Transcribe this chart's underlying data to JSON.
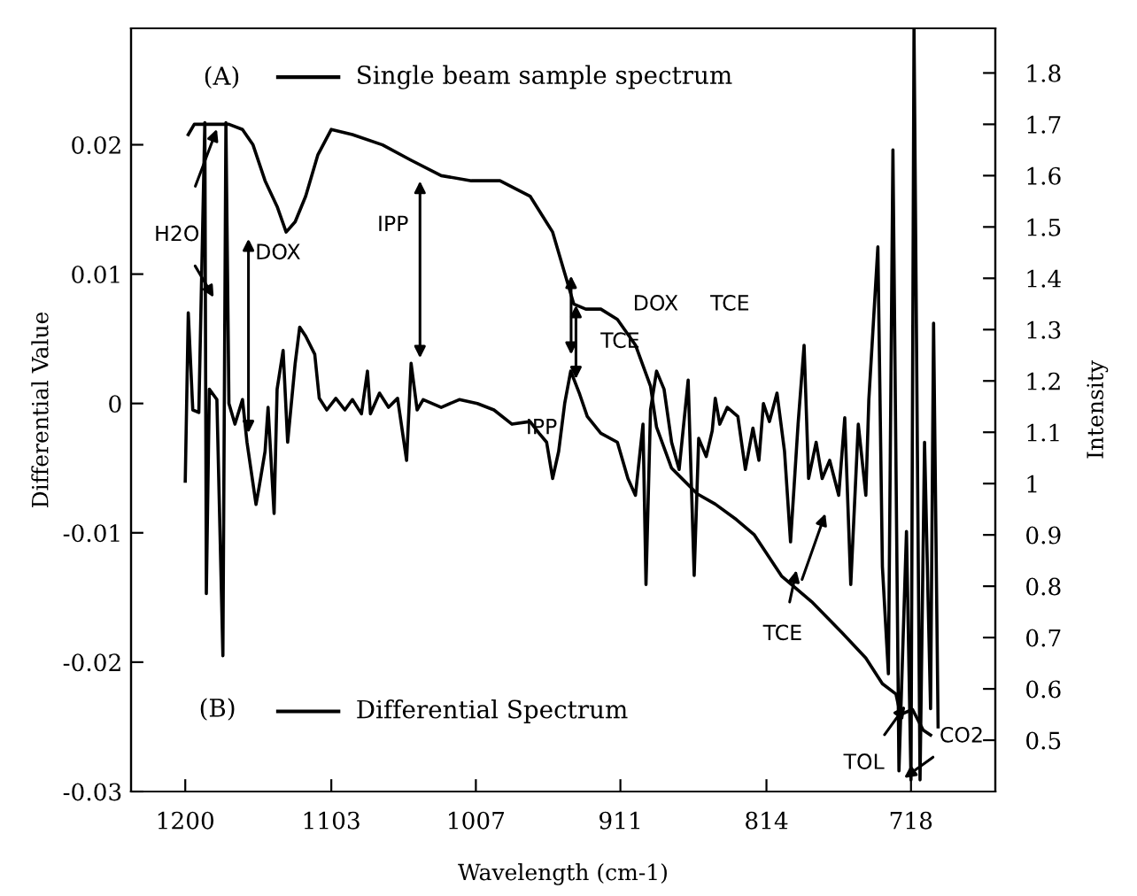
{
  "chart_data": {
    "type": "line",
    "xlabel": "Wavelength (cm-1)",
    "ylabel": "Differential Value",
    "y2label": "Intensity",
    "xlim": [
      1236,
      662
    ],
    "xticks": [
      1200,
      1103,
      1007,
      911,
      814,
      718
    ],
    "ylim": [
      -0.03,
      0.029
    ],
    "yticks": [
      -0.03,
      -0.02,
      -0.01,
      0,
      0.01,
      0.02
    ],
    "y2lim": [
      0.4,
      1.887
    ],
    "y2ticks": [
      0.5,
      0.6,
      0.7,
      0.8,
      0.9,
      1,
      1.1,
      1.2,
      1.3,
      1.4,
      1.5,
      1.6,
      1.7,
      1.8
    ],
    "grid": false,
    "series": [
      {
        "name": "Single beam sample spectrum",
        "color": "#000000",
        "axis": "y2",
        "x": [
          1198,
          1194,
          1186,
          1182,
          1171,
          1162,
          1155,
          1147,
          1139,
          1133,
          1127,
          1120,
          1112,
          1103,
          1089,
          1069,
          1050,
          1030,
          1010,
          991,
          971,
          956,
          948,
          942,
          934,
          924,
          913,
          901,
          891,
          887,
          877,
          860,
          848,
          834,
          822,
          804,
          784,
          764,
          748,
          737,
          728,
          725,
          717,
          710,
          705
        ],
        "values": [
          1.68,
          1.7,
          1.7,
          1.7,
          1.7,
          1.69,
          1.66,
          1.59,
          1.54,
          1.49,
          1.51,
          1.56,
          1.64,
          1.69,
          1.68,
          1.66,
          1.63,
          1.6,
          1.59,
          1.59,
          1.56,
          1.49,
          1.41,
          1.35,
          1.34,
          1.34,
          1.32,
          1.27,
          1.19,
          1.11,
          1.03,
          0.98,
          0.96,
          0.93,
          0.9,
          0.82,
          0.77,
          0.71,
          0.66,
          0.61,
          0.59,
          0.55,
          0.56,
          0.52,
          0.51
        ]
      },
      {
        "name": "Differential Spectrum",
        "color": "#000000",
        "x": [
          1200,
          1198,
          1195,
          1191,
          1187,
          1186,
          1184,
          1179,
          1175,
          1173,
          1171,
          1167,
          1162,
          1159,
          1153,
          1151,
          1147,
          1145,
          1141,
          1139,
          1135,
          1132,
          1127,
          1124,
          1120,
          1114,
          1111,
          1106,
          1100,
          1094,
          1089,
          1083,
          1079,
          1077,
          1071,
          1065,
          1059,
          1053,
          1050,
          1046,
          1042,
          1030,
          1018,
          1006,
          995,
          983,
          971,
          965,
          960,
          956,
          952,
          948,
          944,
          938,
          933,
          924,
          913,
          906,
          901,
          896,
          894,
          891,
          887,
          882,
          877,
          872,
          866,
          862,
          859,
          854,
          850,
          848,
          845,
          840,
          833,
          828,
          823,
          819,
          816,
          812,
          807,
          802,
          798,
          793,
          789,
          786,
          781,
          777,
          772,
          766,
          762,
          758,
          753,
          748,
          746,
          740,
          737,
          733,
          730,
          726,
          721,
          718,
          716,
          712,
          709,
          705,
          703,
          700
        ],
        "values": [
          -0.006,
          0.007,
          -0.0005,
          -0.0007,
          0.0217,
          -0.0147,
          0.0011,
          0.0003,
          -0.0195,
          0.0217,
          0,
          -0.0016,
          0.0003,
          -0.003,
          -0.0078,
          -0.0065,
          -0.0037,
          -0.0003,
          -0.0085,
          0.0011,
          0.0041,
          -0.003,
          0.0031,
          0.0059,
          0.0052,
          0.0038,
          0.0004,
          -0.0005,
          0.0004,
          -0.0005,
          0.0003,
          -0.0008,
          0.0025,
          -0.0008,
          0.0008,
          -0.0003,
          0.0004,
          -0.0044,
          0.0031,
          -0.0005,
          0.0003,
          -0.0003,
          0.0003,
          0,
          -0.0005,
          -0.0016,
          -0.0014,
          -0.0023,
          -0.003,
          -0.0058,
          -0.0037,
          0,
          0.0025,
          0.0007,
          -0.001,
          -0.0023,
          -0.003,
          -0.0058,
          -0.0071,
          -0.0016,
          -0.014,
          -0.0005,
          0.0025,
          0.0011,
          -0.003,
          -0.0051,
          0.0018,
          -0.0133,
          -0.0027,
          -0.0041,
          -0.0021,
          0.0004,
          -0.0016,
          -0.0003,
          -0.001,
          -0.0051,
          -0.0019,
          -0.0044,
          0,
          -0.0014,
          0.0008,
          -0.0037,
          -0.0107,
          -0.0016,
          0.0045,
          -0.0058,
          -0.003,
          -0.0058,
          -0.0044,
          -0.0071,
          -0.0011,
          -0.014,
          -0.0016,
          -0.0071,
          0.0003,
          0.0121,
          -0.0126,
          -0.0209,
          0.0196,
          -0.0284,
          -0.0099,
          -0.0291,
          0.029,
          -0.0291,
          -0.003,
          -0.0236,
          0.0062,
          -0.025
        ]
      }
    ],
    "legend": "left",
    "annotations": [
      "H2O",
      "DOX",
      "IPP",
      "IPP",
      "TCE",
      "DOX",
      "TCE",
      "TCE",
      "TOL",
      "CO2",
      "(A)",
      "(B)"
    ]
  }
}
